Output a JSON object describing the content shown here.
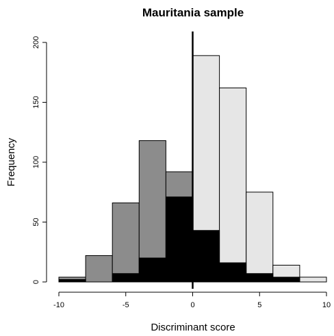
{
  "chart_data": {
    "type": "bar",
    "title": "Mauritania sample",
    "xlabel": "Discriminant score",
    "ylabel": "Frequency",
    "xlim": [
      -10,
      10
    ],
    "ylim": [
      0,
      200
    ],
    "xticks": [
      -10,
      -5,
      0,
      5,
      10
    ],
    "yticks": [
      0,
      50,
      100,
      150,
      200
    ],
    "bin_edges": [
      -10,
      -8,
      -6,
      -4,
      -2,
      0,
      2,
      4,
      6,
      8,
      10
    ],
    "series": [
      {
        "color": "#e6e6e6",
        "values": [
          0,
          0,
          0,
          0,
          0,
          189,
          162,
          75,
          14,
          4
        ]
      },
      {
        "color": "#8c8c8c",
        "values": [
          4,
          22,
          66,
          118,
          92,
          0,
          0,
          0,
          0,
          0
        ]
      },
      {
        "color": "#000000",
        "values": [
          2,
          0,
          7,
          20,
          71,
          43,
          16,
          7,
          4,
          0
        ]
      }
    ],
    "vline_x": 0,
    "grid": false,
    "legend": "none"
  }
}
